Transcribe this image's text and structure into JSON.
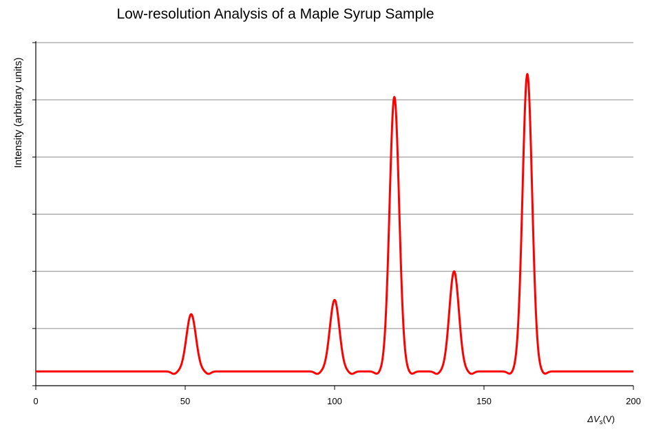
{
  "chart_data": {
    "type": "line",
    "title": "Low-resolution Analysis of a Maple Syrup Sample",
    "xlabel_symbol": "ΔV",
    "xlabel_subscript": "s",
    "xlabel_unit": "(V)",
    "ylabel": "Intensity (arbitrary units)",
    "xlim": [
      0,
      200
    ],
    "ylim": [
      0,
      6
    ],
    "x_ticks": [
      0,
      50,
      100,
      150,
      200
    ],
    "y_gridlines": [
      1,
      2,
      3,
      4,
      5,
      6
    ],
    "y_tick_labels_shown": false,
    "grid": true,
    "legend": "none",
    "line_color": "#ff0000",
    "grid_color": "#8c8c8c",
    "axis_color": "#000000",
    "baseline": 0.25,
    "peaks": [
      {
        "center": 52,
        "height": 1.0,
        "width": 1.6
      },
      {
        "center": 100,
        "height": 1.25,
        "width": 1.6
      },
      {
        "center": 120,
        "height": 4.8,
        "width": 1.6
      },
      {
        "center": 140,
        "height": 1.75,
        "width": 1.6
      },
      {
        "center": 164.5,
        "height": 5.2,
        "width": 1.6
      }
    ],
    "series": [
      {
        "values_description_x": [
          0,
          44,
          52,
          60,
          92,
          100,
          108,
          112,
          120,
          128,
          132,
          140,
          148,
          156,
          164.5,
          172,
          200
        ]
      }
    ]
  }
}
